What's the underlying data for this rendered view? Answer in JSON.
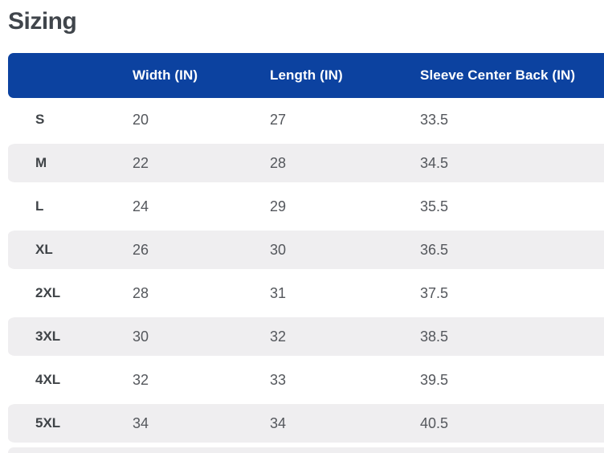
{
  "page": {
    "title": "Sizing"
  },
  "table": {
    "columns": {
      "size": "",
      "width": "Width (IN)",
      "length": "Length (IN)",
      "sleeve": "Sleeve Center Back (IN)"
    },
    "rows": [
      {
        "size": "S",
        "width": "20",
        "length": "27",
        "sleeve": "33.5"
      },
      {
        "size": "M",
        "width": "22",
        "length": "28",
        "sleeve": "34.5"
      },
      {
        "size": "L",
        "width": "24",
        "length": "29",
        "sleeve": "35.5"
      },
      {
        "size": "XL",
        "width": "26",
        "length": "30",
        "sleeve": "36.5"
      },
      {
        "size": "2XL",
        "width": "28",
        "length": "31",
        "sleeve": "37.5"
      },
      {
        "size": "3XL",
        "width": "30",
        "length": "32",
        "sleeve": "38.5"
      },
      {
        "size": "4XL",
        "width": "32",
        "length": "33",
        "sleeve": "39.5"
      },
      {
        "size": "5XL",
        "width": "34",
        "length": "34",
        "sleeve": "40.5"
      }
    ]
  },
  "colors": {
    "header_bg": "#0c42a0",
    "header_text": "#ffffff",
    "row_alt_bg": "#efeef0",
    "title_text": "#40454b",
    "label_text": "#3f4347",
    "value_text": "#54575c",
    "page_bg": "#ffffff"
  }
}
